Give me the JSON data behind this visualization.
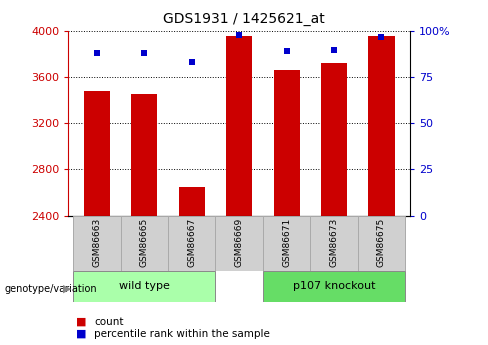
{
  "title": "GDS1931 / 1425621_at",
  "samples": [
    "GSM86663",
    "GSM86665",
    "GSM86667",
    "GSM86669",
    "GSM86671",
    "GSM86673",
    "GSM86675"
  ],
  "bar_values": [
    3480,
    3450,
    2650,
    3960,
    3660,
    3720,
    3960
  ],
  "percentile_values": [
    88,
    88,
    83,
    98,
    89,
    90,
    97
  ],
  "ymin": 2400,
  "ymax": 4000,
  "yticks": [
    2400,
    2800,
    3200,
    3600,
    4000
  ],
  "y2ticks": [
    0,
    25,
    50,
    75,
    100
  ],
  "bar_color": "#cc0000",
  "dot_color": "#0000cc",
  "bg_color": "#ffffff",
  "tick_label_color_left": "#cc0000",
  "tick_label_color_right": "#0000cc",
  "groups": [
    {
      "label": "wild type",
      "start": 0,
      "end": 2,
      "color": "#aaffaa"
    },
    {
      "label": "p107 knockout",
      "start": 3,
      "end": 6,
      "color": "#66dd66"
    }
  ],
  "genotype_label": "genotype/variation",
  "legend_count_label": "count",
  "legend_percentile_label": "percentile rank within the sample",
  "bar_width": 0.55,
  "title_fontsize": 10,
  "label_fontsize": 7.5,
  "tick_fontsize": 8
}
